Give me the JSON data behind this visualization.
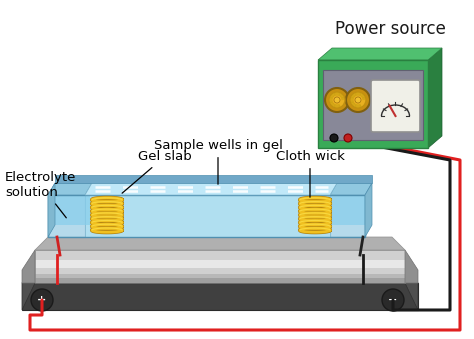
{
  "title": "Power source",
  "labels": {
    "electrolyte": "Electrolyte\nsolution",
    "gel_slab": "Gel slab",
    "sample_wells": "Sample wells in gel",
    "cloth_wick": "Cloth wick"
  },
  "colors": {
    "background": "#ffffff",
    "wire_red": "#e02020",
    "wire_black": "#1a1a1a",
    "label_color": "#000000",
    "title_color": "#1a1a1a"
  },
  "fontsize_title": 12,
  "fontsize_label": 9.5
}
